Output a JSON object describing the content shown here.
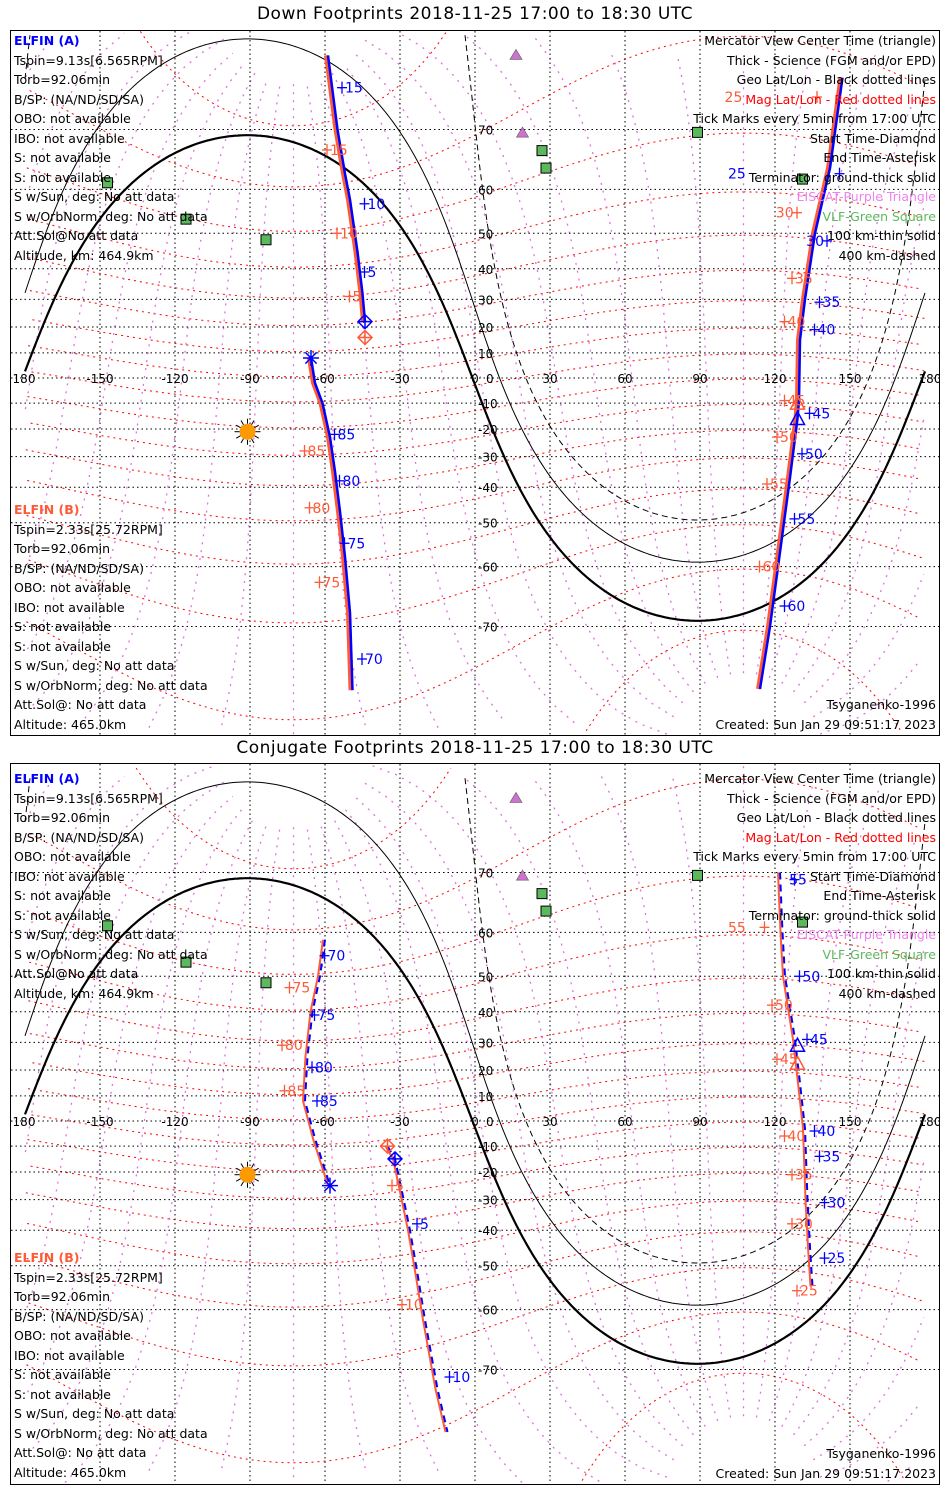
{
  "colors": {
    "blue": "#0000ff",
    "orange": "#ff5a36",
    "mag_lat": "#ff0000",
    "mag_lon": "#e070e0",
    "eiscat": "#d070d0",
    "vlf": "#5cb85c",
    "coast": "#a8a8a8",
    "sun": "#ff9900"
  },
  "sun": {
    "lon": -91,
    "lat": -21,
    "declination": -20.8
  },
  "grid": {
    "lon_labels": [
      "180",
      "-150",
      "-120",
      "-90",
      "-60",
      "-30",
      "0",
      "30",
      "60",
      "90",
      "120",
      "150",
      "180"
    ],
    "lon_values": [
      -180,
      -150,
      -120,
      -90,
      -60,
      -30,
      0,
      30,
      60,
      90,
      120,
      150,
      180
    ],
    "lat_labels": [
      "70",
      "60",
      "50",
      "40",
      "30",
      "20",
      "10",
      "0",
      "-10",
      "-20",
      "-30",
      "-40",
      "-50",
      "-60",
      "-70"
    ],
    "lat_values": [
      70,
      60,
      50,
      40,
      30,
      20,
      10,
      0,
      -10,
      -20,
      -30,
      -40,
      -50,
      -60,
      -70
    ]
  },
  "stations": {
    "eiscat": [
      [
        16.4,
        78
      ],
      [
        19,
        69.5
      ]
    ],
    "vlf": [
      [
        -147,
        61.3
      ],
      [
        -115.6,
        53.5
      ],
      [
        -83.6,
        48.3
      ],
      [
        26.8,
        66.9
      ],
      [
        28.4,
        64
      ],
      [
        89,
        69.6
      ],
      [
        131,
        62
      ]
    ]
  },
  "terminator_curves": [
    {
      "name": "terminator-ground",
      "dip": 0,
      "style": "thick"
    },
    {
      "name": "terminator-100km",
      "dip": 10.1,
      "style": "thin"
    },
    {
      "name": "terminator-400km",
      "dip": 19.9,
      "style": "dashed"
    }
  ],
  "panels": [
    {
      "title": "Down Footprints 2018-11-25 17:00 to 18:30 UTC",
      "elfin_a": {
        "name": "ELFIN (A)",
        "lines": [
          "Tspin=9.13s[6.565RPM]",
          "Torb=92.06min",
          "B/SP: (NA/ND/SD/SA)",
          "OBO: not available",
          "IBO: not available",
          "S: not available",
          "S: not available",
          "S w/Sun, deg: No att data",
          "S w/OrbNorm, deg: No att data",
          "Att.Sol@No att data",
          "Altitude, km: 464.9km"
        ]
      },
      "elfin_b": {
        "name": "ELFIN (B)",
        "lines": [
          "Tspin=2.33s[25.72RPM]",
          "Torb=92.06min",
          "B/SP: (NA/ND/SD/SA)",
          "OBO: not available",
          "IBO: not available",
          "S: not available",
          "S: not available",
          "S w/Sun, deg: No att data",
          "S w/OrbNorm, deg: No att data",
          "Att.Sol@: No att data",
          "Altitude: 465.0km"
        ]
      },
      "legend": [
        {
          "text": "Mercator View Center Time (triangle)",
          "color": "#000000"
        },
        {
          "text": "Thick - Science (FGM and/or EPD)",
          "color": "#000000"
        },
        {
          "text": "Geo Lat/Lon - Black dotted lines",
          "color": "#000000"
        },
        {
          "text": "Mag Lat/Lon - Red dotted lines",
          "color": "#ff0000"
        },
        {
          "text": "Tick Marks every 5min from 17:00 UTC",
          "color": "#000000"
        },
        {
          "text": "Start Time-Diamond",
          "color": "#000000"
        },
        {
          "text": "End Time-Asterisk",
          "color": "#000000"
        },
        {
          "text": "Terminator: ground-thick solid",
          "color": "#000000"
        },
        {
          "text": "EISCAT-Purple Triangle",
          "color": "#ee82ee"
        },
        {
          "text": "VLF-Green Square",
          "color": "#5cb85c"
        },
        {
          "text": "100 km-thin solid",
          "color": "#000000"
        },
        {
          "text": "400 km-dashed",
          "color": "#000000"
        }
      ],
      "model": "Tsyganenko-1996",
      "created": "Created: Sun Jan 29 09:51:17 2023",
      "dashed_tracks": false,
      "tracks": [
        {
          "points": [
            [
              -58.8,
              78
            ],
            [
              -55,
              70
            ],
            [
              -52,
              63
            ],
            [
              -50,
              57.9
            ],
            [
              -47,
              45
            ],
            [
              -45,
              32
            ],
            [
              -44,
              22
            ]
          ]
        },
        {
          "points": [
            [
              -65.6,
              8
            ],
            [
              -64,
              -2
            ],
            [
              -61,
              -10
            ],
            [
              -58,
              -23
            ],
            [
              -56,
              -35
            ],
            [
              -54,
              -47
            ],
            [
              -52,
              -58
            ],
            [
              -50,
              -68
            ],
            [
              -49,
              -77.1
            ]
          ]
        },
        {
          "points": [
            [
              147,
              76
            ],
            [
              142,
              64
            ],
            [
              136,
              50
            ],
            [
              132,
              30
            ],
            [
              130,
              15
            ],
            [
              129.6,
              -9
            ],
            [
              129,
              -16
            ],
            [
              126,
              -37
            ],
            [
              122,
              -57
            ],
            [
              118,
              -70
            ],
            [
              114,
              -77
            ]
          ]
        }
      ],
      "markers": [
        {
          "type": "diamond",
          "lon": -44,
          "lat": 22,
          "color": "#0000ff"
        },
        {
          "type": "diamond",
          "lon": -44,
          "lat": 16,
          "color": "#ff5a36"
        },
        {
          "type": "asterisk",
          "lon": -65.6,
          "lat": 8,
          "color": "#0000ff"
        },
        {
          "type": "triangle",
          "lon": 129,
          "lat": -16,
          "color": "#0000ff"
        },
        {
          "type": "triangle",
          "lon": 129,
          "lat": -10,
          "color": "#ff5a36"
        }
      ],
      "tick_labels": [
        {
          "text": "15",
          "lon": -52,
          "lat": 75,
          "sat": "a"
        },
        {
          "text": "10",
          "lon": -43,
          "lat": 57,
          "sat": "a"
        },
        {
          "text": "5",
          "lon": -43,
          "lat": 39,
          "sat": "a"
        },
        {
          "text": "15",
          "lon": -58,
          "lat": 67,
          "sat": "b"
        },
        {
          "text": "10",
          "lon": -54,
          "lat": 50,
          "sat": "b"
        },
        {
          "text": "5",
          "lon": -49,
          "lat": 31,
          "sat": "b"
        },
        {
          "text": "85",
          "lon": -55,
          "lat": -22,
          "sat": "a"
        },
        {
          "text": "80",
          "lon": -53,
          "lat": -38,
          "sat": "a"
        },
        {
          "text": "75",
          "lon": -51,
          "lat": -55,
          "sat": "a"
        },
        {
          "text": "70",
          "lon": -44,
          "lat": -74,
          "sat": "a"
        },
        {
          "text": "85",
          "lon": -67,
          "lat": -28,
          "sat": "b"
        },
        {
          "text": "80",
          "lon": -65,
          "lat": -46,
          "sat": "b"
        },
        {
          "text": "75",
          "lon": -61,
          "lat": -63,
          "sat": "b"
        },
        {
          "text": "25",
          "lon": 147,
          "lat": 63,
          "sat": "a"
        },
        {
          "text": "30",
          "lon": 142,
          "lat": 48,
          "sat": "a"
        },
        {
          "text": "35",
          "lon": 139,
          "lat": 29,
          "sat": "a"
        },
        {
          "text": "40",
          "lon": 137,
          "lat": 19,
          "sat": "a"
        },
        {
          "text": "45",
          "lon": 135,
          "lat": -14,
          "sat": "a"
        },
        {
          "text": "50",
          "lon": 132,
          "lat": -29,
          "sat": "a"
        },
        {
          "text": "55",
          "lon": 129,
          "lat": -49,
          "sat": "a"
        },
        {
          "text": "60",
          "lon": 125,
          "lat": -67,
          "sat": "a"
        },
        {
          "text": "25",
          "lon": 138,
          "lat": 74,
          "sat": "b"
        },
        {
          "text": "30",
          "lon": 130,
          "lat": 55,
          "sat": "b"
        },
        {
          "text": "35",
          "lon": 128,
          "lat": 37,
          "sat": "b"
        },
        {
          "text": "40",
          "lon": 125,
          "lat": 22,
          "sat": "b"
        },
        {
          "text": "45",
          "lon": 125,
          "lat": -9,
          "sat": "b"
        },
        {
          "text": "50",
          "lon": 122,
          "lat": -23,
          "sat": "b"
        },
        {
          "text": "55",
          "lon": 118,
          "lat": -39,
          "sat": "b"
        },
        {
          "text": "60",
          "lon": 115,
          "lat": -60,
          "sat": "b"
        }
      ]
    },
    {
      "title": "Conjugate Footprints 2018-11-25 17:00 to 18:30 UTC",
      "elfin_a": {
        "name": "ELFIN (A)",
        "lines": [
          "Tspin=9.13s[6.565RPM]",
          "Torb=92.06min",
          "B/SP: (NA/ND/SD/SA)",
          "OBO: not available",
          "IBO: not available",
          "S: not available",
          "S: not available",
          "S w/Sun, deg: No att data",
          "S w/OrbNorm, deg: No att data",
          "Att.Sol@No att data",
          "Altitude, km: 464.9km"
        ]
      },
      "elfin_b": {
        "name": "ELFIN (B)",
        "lines": [
          "Tspin=2.33s[25.72RPM]",
          "Torb=92.06min",
          "B/SP: (NA/ND/SD/SA)",
          "OBO: not available",
          "IBO: not available",
          "S: not available",
          "S: not available",
          "S w/Sun, deg: No att data",
          "S w/OrbNorm, deg: No att data",
          "Att.Sol@: No att data",
          "Altitude: 465.0km"
        ]
      },
      "legend": [
        {
          "text": "Mercator View Center Time (triangle)",
          "color": "#000000"
        },
        {
          "text": "Thick - Science (FGM and/or EPD)",
          "color": "#000000"
        },
        {
          "text": "Geo Lat/Lon - Black dotted lines",
          "color": "#000000"
        },
        {
          "text": "Mag Lat/Lon - Red dotted lines",
          "color": "#ff0000"
        },
        {
          "text": "Tick Marks every 5min from 17:00 UTC",
          "color": "#000000"
        },
        {
          "text": "Start Time-Diamond",
          "color": "#000000"
        },
        {
          "text": "End Time-Asterisk",
          "color": "#000000"
        },
        {
          "text": "Terminator: ground-thick solid",
          "color": "#000000"
        },
        {
          "text": "EISCAT-Purple Triangle",
          "color": "#ee82ee"
        },
        {
          "text": "VLF-Green Square",
          "color": "#5cb85c"
        },
        {
          "text": "100 km-thin solid",
          "color": "#000000"
        },
        {
          "text": "400 km-dashed",
          "color": "#000000"
        }
      ],
      "model": "Tsyganenko-1996",
      "created": "Created: Sun Jan 29 09:51:17 2023",
      "dashed_tracks": true,
      "tracks": [
        {
          "points": [
            [
              -60,
              58.5
            ],
            [
              -62,
              50
            ],
            [
              -65,
              40
            ],
            [
              -67,
              25
            ],
            [
              -68,
              8
            ],
            [
              -64,
              -7
            ],
            [
              -58,
              -25
            ]
          ]
        },
        {
          "points": [
            [
              -35,
              -10
            ],
            [
              -32,
              -15
            ],
            [
              -29,
              -28
            ],
            [
              -26,
              -40
            ],
            [
              -23,
              -52
            ],
            [
              -20,
              -62
            ],
            [
              -15,
              -72.5
            ],
            [
              -11,
              -77
            ]
          ]
        },
        {
          "points": [
            [
              122,
              70
            ],
            [
              123,
              60
            ],
            [
              124,
              50
            ],
            [
              128,
              31
            ],
            [
              130,
              15
            ],
            [
              132,
              -3
            ],
            [
              133,
              -30
            ],
            [
              134,
              -45
            ],
            [
              135,
              -55
            ]
          ]
        }
      ],
      "markers": [
        {
          "type": "asterisk",
          "lon": -58,
          "lat": -25,
          "color": "#0000ff"
        },
        {
          "type": "diamond",
          "lon": -32,
          "lat": -15,
          "color": "#0000ff"
        },
        {
          "type": "diamond",
          "lon": -35,
          "lat": -10,
          "color": "#ff5a36"
        },
        {
          "type": "triangle",
          "lon": 129,
          "lat": 29,
          "color": "#0000ff"
        },
        {
          "type": "triangle",
          "lon": 129,
          "lat": 22.5,
          "color": "#ff5a36"
        }
      ],
      "tick_labels": [
        {
          "text": "70",
          "lon": -59,
          "lat": 55,
          "sat": "a"
        },
        {
          "text": "75",
          "lon": -63,
          "lat": 39,
          "sat": "a"
        },
        {
          "text": "80",
          "lon": -64,
          "lat": 21,
          "sat": "a"
        },
        {
          "text": "85",
          "lon": -62,
          "lat": 8,
          "sat": "a"
        },
        {
          "text": "75",
          "lon": -73,
          "lat": 47,
          "sat": "b"
        },
        {
          "text": "80",
          "lon": -76,
          "lat": 29,
          "sat": "b"
        },
        {
          "text": "85",
          "lon": -75,
          "lat": 12,
          "sat": "b"
        },
        {
          "text": "5",
          "lon": -22,
          "lat": -38,
          "sat": "a"
        },
        {
          "text": "10",
          "lon": -9,
          "lat": -71,
          "sat": "a"
        },
        {
          "text": "5",
          "lon": -32,
          "lat": -25,
          "sat": "b"
        },
        {
          "text": "10",
          "lon": -28,
          "lat": -59,
          "sat": "b"
        },
        {
          "text": "55",
          "lon": 129,
          "lat": 69,
          "sat": "a"
        },
        {
          "text": "50",
          "lon": 131,
          "lat": 50,
          "sat": "a"
        },
        {
          "text": "45",
          "lon": 134,
          "lat": 31,
          "sat": "a"
        },
        {
          "text": "40",
          "lon": 137,
          "lat": -4,
          "sat": "a"
        },
        {
          "text": "35",
          "lon": 139,
          "lat": -14,
          "sat": "a"
        },
        {
          "text": "30",
          "lon": 141,
          "lat": -31,
          "sat": "a"
        },
        {
          "text": "25",
          "lon": 141,
          "lat": -48,
          "sat": "a"
        },
        {
          "text": "55",
          "lon": 117,
          "lat": 61,
          "sat": "b"
        },
        {
          "text": "50",
          "lon": 120,
          "lat": 42,
          "sat": "b"
        },
        {
          "text": "45",
          "lon": 122,
          "lat": 24,
          "sat": "b"
        },
        {
          "text": "40",
          "lon": 125,
          "lat": -6,
          "sat": "b"
        },
        {
          "text": "35",
          "lon": 128,
          "lat": -21,
          "sat": "b"
        },
        {
          "text": "30",
          "lon": 128,
          "lat": -38,
          "sat": "b"
        },
        {
          "text": "25",
          "lon": 130,
          "lat": -56,
          "sat": "b"
        }
      ]
    }
  ]
}
